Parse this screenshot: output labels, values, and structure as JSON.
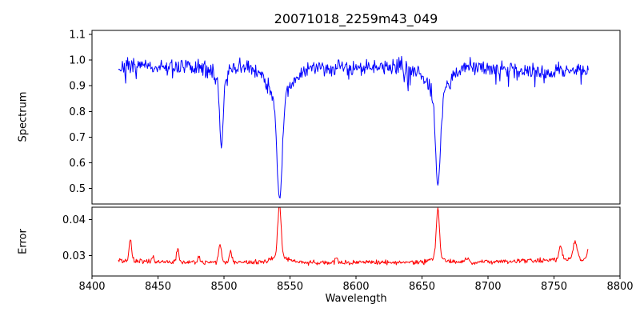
{
  "chart_data": [
    {
      "type": "line",
      "panel": "spectrum",
      "title": "20071018_2259m43_049",
      "ylabel": "Spectrum",
      "xlim": [
        8400,
        8800
      ],
      "ylim": [
        0.44,
        1.115
      ],
      "yticks": [
        0.5,
        0.6,
        0.7,
        0.8,
        0.9,
        1.0,
        1.1
      ],
      "ytick_labels": [
        "0.5",
        "0.6",
        "0.7",
        "0.8",
        "0.9",
        "1.0",
        "1.1"
      ],
      "line_color": "#0000ff",
      "frame_color": "#000000",
      "background": "#ffffff",
      "grid": false,
      "legend": "none",
      "series_name": "spectrum",
      "series_model": {
        "description": "Noisy normalized stellar spectrum, continuum near 0.97, with Ca II triplet absorption lines at 8498, 8542, 8662 reaching depths ~0.67, ~0.46, ~0.51",
        "x_start": 8420,
        "x_end": 8776,
        "x_step": 0.5,
        "baseline": 0.972,
        "noise_sigma": 0.016,
        "scale_noise_by_level": true,
        "spike_prob": 0.05,
        "spike_depth": 0.07,
        "seed": 7,
        "lines": [
          {
            "center": 8498.0,
            "depth": 0.26,
            "sigma": 1.3,
            "wing_depth": 0.05,
            "wing_sigma": 5
          },
          {
            "center": 8542.1,
            "depth": 0.4,
            "sigma": 2.0,
            "wing_depth": 0.11,
            "wing_sigma": 9
          },
          {
            "center": 8662.1,
            "depth": 0.36,
            "sigma": 1.8,
            "wing_depth": 0.1,
            "wing_sigma": 8
          },
          {
            "center": 8745.0,
            "depth": 0.018,
            "sigma": 22,
            "wing_depth": 0,
            "wing_sigma": 1
          }
        ]
      }
    },
    {
      "type": "line",
      "panel": "error",
      "ylabel": "Error",
      "xlabel": "Wavelength",
      "xlim": [
        8400,
        8800
      ],
      "ylim": [
        0.0243,
        0.0435
      ],
      "yticks": [
        0.03,
        0.04
      ],
      "ytick_labels": [
        "0.03",
        "0.04"
      ],
      "xticks": [
        8400,
        8450,
        8500,
        8550,
        8600,
        8650,
        8700,
        8750,
        8800
      ],
      "xtick_labels": [
        "8400",
        "8450",
        "8500",
        "8550",
        "8600",
        "8650",
        "8700",
        "8750",
        "8800"
      ],
      "line_color": "#ff0000",
      "frame_color": "#000000",
      "background": "#ffffff",
      "grid": false,
      "legend": "none",
      "series_name": "error",
      "series_model": {
        "description": "Error spectrum, baseline ~0.028, tall spikes at 8542 and 8662 reaching ~0.044, smaller spikes near 8429, 8465, 8497, 8505, 8755, 8766",
        "x_start": 8420,
        "x_end": 8776,
        "x_step": 0.5,
        "baseline": 0.0281,
        "noise_sigma": 0.00032,
        "scale_noise_by_level": false,
        "seed": 12345,
        "peaks": [
          {
            "center": 8429,
            "amp": 0.0062,
            "sigma": 0.9
          },
          {
            "center": 8446,
            "amp": 0.0018,
            "sigma": 0.8
          },
          {
            "center": 8465,
            "amp": 0.004,
            "sigma": 0.9
          },
          {
            "center": 8481,
            "amp": 0.0014,
            "sigma": 0.7
          },
          {
            "center": 8497,
            "amp": 0.0052,
            "sigma": 1.0
          },
          {
            "center": 8505,
            "amp": 0.0032,
            "sigma": 0.9
          },
          {
            "center": 8542,
            "amp": 0.0146,
            "sigma": 1.3
          },
          {
            "center": 8542,
            "amp": 0.0015,
            "sigma": 6
          },
          {
            "center": 8585,
            "amp": 0.0015,
            "sigma": 0.8
          },
          {
            "center": 8662,
            "amp": 0.0136,
            "sigma": 1.2
          },
          {
            "center": 8662,
            "amp": 0.0013,
            "sigma": 5
          },
          {
            "center": 8684,
            "amp": 0.0012,
            "sigma": 1.5
          },
          {
            "center": 8755,
            "amp": 0.0038,
            "sigma": 1.2
          },
          {
            "center": 8766,
            "amp": 0.0048,
            "sigma": 1.6
          },
          {
            "center": 8776,
            "amp": 0.0028,
            "sigma": 1.0
          },
          {
            "center": 8770,
            "amp": 0.0008,
            "sigma": 35
          },
          {
            "center": 8425,
            "amp": 0.0004,
            "sigma": 15
          }
        ]
      }
    }
  ]
}
